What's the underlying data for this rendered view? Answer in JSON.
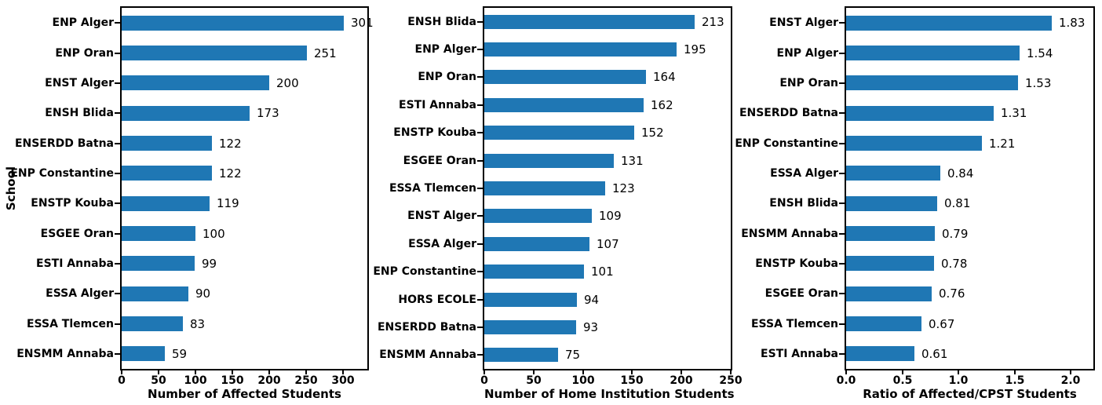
{
  "figure": {
    "background": "#ffffff",
    "text_color": "#000000"
  },
  "chart_data": [
    {
      "type": "bar",
      "orientation": "horizontal",
      "title": "",
      "xlabel": "Number of Affected Students",
      "ylabel": "School",
      "bar_color": "#1f77b4",
      "grid": false,
      "legend": null,
      "xlim": [
        0,
        333
      ],
      "xticks": [
        0,
        50,
        100,
        150,
        200,
        250,
        300
      ],
      "xtick_labels": [
        "0",
        "50",
        "100",
        "150",
        "200",
        "250",
        "300"
      ],
      "categories": [
        "ENP Alger",
        "ENP Oran",
        "ENST Alger",
        "ENSH Blida",
        "ENSERDD Batna",
        "ENP Constantine",
        "ENSTP Kouba",
        "ESGEE Oran",
        "ESTI Annaba",
        "ESSA Alger",
        "ESSA Tlemcen",
        "ENSMM Annaba"
      ],
      "values": [
        301,
        251,
        200,
        173,
        122,
        122,
        119,
        100,
        99,
        90,
        83,
        59
      ],
      "value_labels": [
        "301",
        "251",
        "200",
        "173",
        "122",
        "122",
        "119",
        "100",
        "99",
        "90",
        "83",
        "59"
      ]
    },
    {
      "type": "bar",
      "orientation": "horizontal",
      "title": "",
      "xlabel": "Number of Home Institution Students",
      "ylabel": "",
      "bar_color": "#1f77b4",
      "grid": false,
      "legend": null,
      "xlim": [
        0,
        250
      ],
      "xticks": [
        0,
        50,
        100,
        150,
        200,
        250
      ],
      "xtick_labels": [
        "0",
        "50",
        "100",
        "150",
        "200",
        "250"
      ],
      "categories": [
        "ENSH Blida",
        "ENP Alger",
        "ENP Oran",
        "ESTI Annaba",
        "ENSTP Kouba",
        "ESGEE Oran",
        "ESSA Tlemcen",
        "ENST Alger",
        "ESSA Alger",
        "ENP Constantine",
        "HORS ECOLE",
        "ENSERDD Batna",
        "ENSMM Annaba"
      ],
      "values": [
        213,
        195,
        164,
        162,
        152,
        131,
        123,
        109,
        107,
        101,
        94,
        93,
        75
      ],
      "value_labels": [
        "213",
        "195",
        "164",
        "162",
        "152",
        "131",
        "123",
        "109",
        "107",
        "101",
        "94",
        "93",
        "75"
      ]
    },
    {
      "type": "bar",
      "orientation": "horizontal",
      "title": "",
      "xlabel": "Ratio of Affected/CPST Students",
      "ylabel": "",
      "bar_color": "#1f77b4",
      "grid": false,
      "legend": null,
      "xlim": [
        0,
        2.2
      ],
      "xticks": [
        0,
        0.5,
        1.0,
        1.5,
        2.0
      ],
      "xtick_labels": [
        "0.0",
        "0.5",
        "1.0",
        "1.5",
        "2.0"
      ],
      "categories": [
        "ENST Alger",
        "ENP Alger",
        "ENP Oran",
        "ENSERDD Batna",
        "ENP Constantine",
        "ESSA Alger",
        "ENSH Blida",
        "ENSMM Annaba",
        "ENSTP Kouba",
        "ESGEE Oran",
        "ESSA Tlemcen",
        "ESTI Annaba"
      ],
      "values": [
        1.83,
        1.54,
        1.53,
        1.31,
        1.21,
        0.84,
        0.81,
        0.79,
        0.78,
        0.76,
        0.67,
        0.61
      ],
      "value_labels": [
        "1.83",
        "1.54",
        "1.53",
        "1.31",
        "1.21",
        "0.84",
        "0.81",
        "0.79",
        "0.78",
        "0.76",
        "0.67",
        "0.61"
      ]
    }
  ]
}
